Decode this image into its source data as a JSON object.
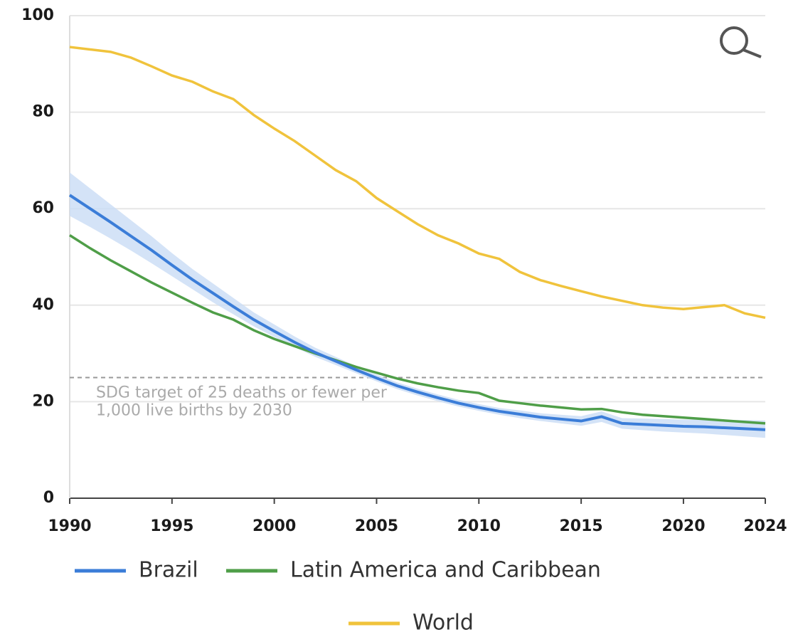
{
  "chart_data": {
    "type": "line",
    "x": [
      1990,
      1991,
      1992,
      1993,
      1994,
      1995,
      1996,
      1997,
      1998,
      1999,
      2000,
      2001,
      2002,
      2003,
      2004,
      2005,
      2006,
      2007,
      2008,
      2009,
      2010,
      2011,
      2012,
      2013,
      2014,
      2015,
      2016,
      2017,
      2018,
      2019,
      2020,
      2021,
      2022,
      2023,
      2024
    ],
    "series": [
      {
        "name": "Brazil",
        "color": "#3b7dd8",
        "band_color": "#c9dcf5",
        "values": [
          62.8,
          60,
          57.2,
          54.3,
          51.4,
          48.3,
          45.3,
          42.5,
          39.7,
          37,
          34.6,
          32.3,
          30.2,
          28.4,
          26.6,
          24.9,
          23.3,
          22,
          20.8,
          19.7,
          18.8,
          18,
          17.4,
          16.8,
          16.4,
          16,
          16.9,
          15.5,
          15.3,
          15.1,
          14.9,
          14.8,
          14.6,
          14.4,
          14.2
        ],
        "lower": [
          58.5,
          56.2,
          53.8,
          51.3,
          48.7,
          46,
          43.3,
          40.6,
          38.1,
          35.6,
          33.4,
          31.3,
          29.3,
          27.6,
          25.9,
          24.2,
          22.6,
          21.3,
          20.1,
          19,
          18.1,
          17.3,
          16.6,
          16,
          15.5,
          15,
          15.8,
          14.4,
          14.1,
          13.8,
          13.6,
          13.4,
          13.1,
          12.8,
          12.5
        ],
        "upper": [
          67.5,
          64.2,
          60.9,
          57.6,
          54.3,
          50.8,
          47.5,
          44.5,
          41.5,
          38.5,
          36,
          33.5,
          31.2,
          29.3,
          27.4,
          25.6,
          24,
          22.7,
          21.5,
          20.4,
          19.5,
          18.7,
          18.2,
          17.6,
          17.3,
          17,
          18,
          16.6,
          16.5,
          16.4,
          16.3,
          16.3,
          16.2,
          16.2,
          16.1
        ]
      },
      {
        "name": "Latin America and Caribbean",
        "color": "#4f9e48",
        "values": [
          54.5,
          51.8,
          49.3,
          47,
          44.7,
          42.6,
          40.5,
          38.5,
          37,
          34.8,
          33,
          31.5,
          30,
          28.6,
          27.2,
          26,
          24.8,
          23.8,
          23,
          22.3,
          21.8,
          20.2,
          19.7,
          19.2,
          18.8,
          18.4,
          18.5,
          17.8,
          17.3,
          17,
          16.7,
          16.4,
          16.1,
          15.8,
          15.5
        ]
      },
      {
        "name": "World",
        "color": "#f0c33c",
        "values": [
          93.5,
          93,
          92.5,
          91.3,
          89.5,
          87.6,
          86.3,
          84.3,
          82.7,
          79.4,
          76.6,
          74,
          71,
          68,
          65.7,
          62.2,
          59.5,
          56.8,
          54.5,
          52.8,
          50.7,
          49.6,
          46.9,
          45.2,
          44,
          42.9,
          41.8,
          40.9,
          40,
          39.5,
          39.2,
          39.6,
          40,
          38.3,
          37.4
        ]
      }
    ],
    "xlim": [
      1990,
      2024
    ],
    "xticks": [
      1990,
      1995,
      2000,
      2005,
      2010,
      2015,
      2020,
      2024
    ],
    "ylim": [
      0,
      100
    ],
    "yticks": [
      0,
      20,
      40,
      60,
      80,
      100
    ],
    "grid": true,
    "target": {
      "value": 25,
      "text": [
        "SDG target of 25 deaths or fewer per",
        "1,000 live births by 2030"
      ]
    }
  }
}
